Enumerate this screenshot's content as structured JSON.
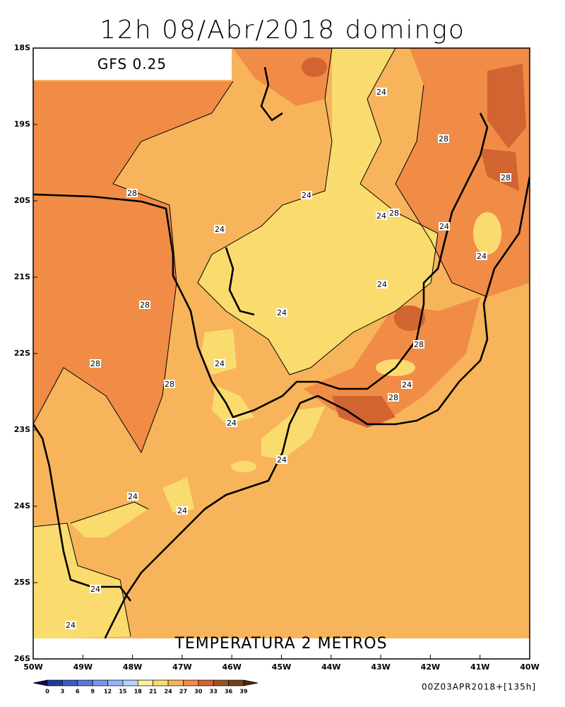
{
  "title": "12h 08/Abr/2018 domingo",
  "model": "GFS 0.25",
  "field": "TEMPERATURA 2 METROS",
  "run": "00Z03APR2018+[135h]",
  "lat_labels": [
    "18S",
    "19S",
    "20S",
    "21S",
    "22S",
    "23S",
    "24S",
    "25S",
    "26S"
  ],
  "lon_labels": [
    "50W",
    "49W",
    "48W",
    "47W",
    "46W",
    "45W",
    "44W",
    "43W",
    "42W",
    "41W",
    "40W"
  ],
  "colorbar": {
    "ticks": [
      0,
      3,
      6,
      9,
      12,
      15,
      18,
      21,
      24,
      27,
      30,
      33,
      36,
      39
    ],
    "colors": [
      "#0a0a60",
      "#1e3c9c",
      "#3c5ac8",
      "#5a78dc",
      "#7896f0",
      "#96b4f8",
      "#b4d2fc",
      "#faf0a0",
      "#fadc6e",
      "#f8b45a",
      "#f08c46",
      "#d26432",
      "#a0501e",
      "#784014",
      "#502808"
    ]
  },
  "contour_labels": [
    "24",
    "28",
    "28",
    "28",
    "24",
    "24",
    "28",
    "24",
    "24",
    "24",
    "24",
    "28",
    "24",
    "28",
    "28",
    "24",
    "28",
    "24",
    "28",
    "24",
    "24",
    "24",
    "24",
    "24",
    "24"
  ]
}
